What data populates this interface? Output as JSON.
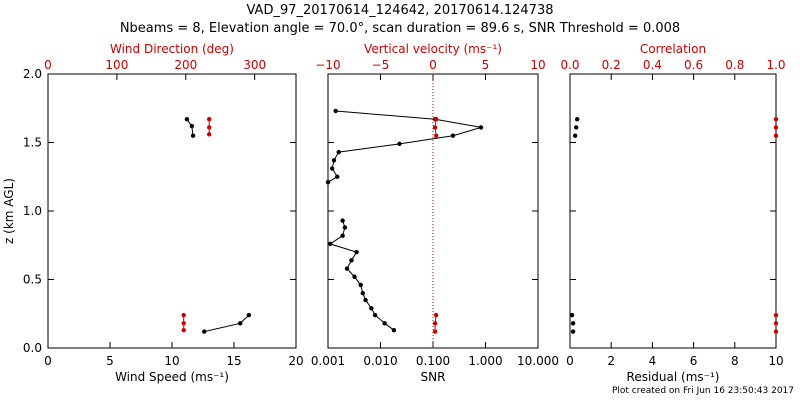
{
  "title_line1": "VAD_97_20170614_124642, 20170614.124738",
  "title_line2": "Nbeams = 8, Elevation angle = 70.0°, scan duration = 89.6 s, SNR Threshold = 0.008",
  "footnote": "Plot created on Fri Jun 16 23:50:43 2017",
  "colors": {
    "black": "#000000",
    "red": "#cc0000",
    "dotted": "#cc0000"
  },
  "chart_data": [
    {
      "type": "line",
      "name": "wind",
      "ylabel": "z (km AGL)",
      "ylim": [
        0.0,
        2.0
      ],
      "yticks": [
        "0.0",
        "0.5",
        "1.0",
        "1.5",
        "2.0"
      ],
      "bottom_axis": {
        "label": "Wind Speed (ms⁻¹)",
        "range": [
          0,
          20
        ],
        "ticks": [
          "0",
          "5",
          "10",
          "15",
          "20"
        ]
      },
      "top_axis": {
        "label": "Wind Direction (deg)",
        "range": [
          0,
          360
        ],
        "ticks": [
          "0",
          "100",
          "200",
          "300"
        ]
      },
      "series": [
        {
          "name": "Wind Speed",
          "axis": "bottom",
          "color": "#000000",
          "segments": [
            [
              {
                "x": 11.2,
                "z": 1.67
              },
              {
                "x": 11.6,
                "z": 1.62
              },
              {
                "x": 11.7,
                "z": 1.55
              }
            ],
            [
              {
                "x": 16.2,
                "z": 0.24
              },
              {
                "x": 15.5,
                "z": 0.18
              },
              {
                "x": 12.6,
                "z": 0.12
              }
            ]
          ]
        },
        {
          "name": "Wind Direction",
          "axis": "top",
          "color": "#cc0000",
          "segments": [
            [
              {
                "x": 234,
                "z": 1.67
              },
              {
                "x": 234,
                "z": 1.61
              },
              {
                "x": 234,
                "z": 1.56
              }
            ],
            [
              {
                "x": 197,
                "z": 0.24
              },
              {
                "x": 197,
                "z": 0.18
              },
              {
                "x": 197,
                "z": 0.13
              }
            ]
          ]
        }
      ]
    },
    {
      "type": "line",
      "name": "vertical-velocity",
      "ylim": [
        0.0,
        2.0
      ],
      "bottom_axis": {
        "label": "SNR",
        "scale": "log",
        "range": [
          0.001,
          10.0
        ],
        "ticks": [
          "0.001",
          "0.010",
          "0.100",
          "1.000",
          "10.000"
        ]
      },
      "top_axis": {
        "label": "Vertical velocity (ms⁻¹)",
        "range": [
          -10,
          10
        ],
        "ticks": [
          "−10",
          "−5",
          "0",
          "5",
          "10"
        ]
      },
      "reference_line": {
        "axis": "bottom",
        "value": 0.1,
        "style": "dotted"
      },
      "series": [
        {
          "name": "SNR",
          "axis": "bottom",
          "color": "#000000",
          "segments": [
            [
              {
                "x": 0.0014,
                "z": 1.73
              },
              {
                "x": 0.11,
                "z": 1.67
              },
              {
                "x": 0.82,
                "z": 1.61
              },
              {
                "x": 0.24,
                "z": 1.55
              },
              {
                "x": 0.023,
                "z": 1.49
              },
              {
                "x": 0.0016,
                "z": 1.43
              },
              {
                "x": 0.0013,
                "z": 1.37
              },
              {
                "x": 0.0012,
                "z": 1.31
              },
              {
                "x": 0.0015,
                "z": 1.25
              },
              {
                "x": 0.001,
                "z": 1.21
              }
            ],
            [
              {
                "x": 0.0019,
                "z": 0.93
              },
              {
                "x": 0.0021,
                "z": 0.88
              },
              {
                "x": 0.0019,
                "z": 0.82
              },
              {
                "x": 0.0011,
                "z": 0.76
              },
              {
                "x": 0.0035,
                "z": 0.7
              },
              {
                "x": 0.0028,
                "z": 0.64
              },
              {
                "x": 0.0023,
                "z": 0.58
              },
              {
                "x": 0.0032,
                "z": 0.52
              },
              {
                "x": 0.0042,
                "z": 0.46
              },
              {
                "x": 0.0046,
                "z": 0.4
              },
              {
                "x": 0.0052,
                "z": 0.35
              },
              {
                "x": 0.0067,
                "z": 0.29
              },
              {
                "x": 0.0079,
                "z": 0.24
              },
              {
                "x": 0.012,
                "z": 0.18
              },
              {
                "x": 0.018,
                "z": 0.13
              }
            ]
          ]
        },
        {
          "name": "Vertical velocity",
          "axis": "top",
          "color": "#cc0000",
          "segments": [
            [
              {
                "x": 0.3,
                "z": 1.67
              },
              {
                "x": 0.2,
                "z": 1.61
              },
              {
                "x": 0.3,
                "z": 1.55
              }
            ],
            [
              {
                "x": 0.3,
                "z": 0.24
              },
              {
                "x": 0.2,
                "z": 0.18
              },
              {
                "x": 0.2,
                "z": 0.12
              }
            ]
          ]
        }
      ]
    },
    {
      "type": "scatter",
      "name": "correlation",
      "ylim": [
        0.0,
        2.0
      ],
      "bottom_axis": {
        "label": "Residual (ms⁻¹)",
        "range": [
          0,
          10
        ],
        "ticks": [
          "0",
          "2",
          "4",
          "6",
          "8",
          "10"
        ]
      },
      "top_axis": {
        "label": "Correlation",
        "range": [
          0.0,
          1.0
        ],
        "ticks": [
          "0.0",
          "0.2",
          "0.4",
          "0.6",
          "0.8",
          "1.0"
        ]
      },
      "series": [
        {
          "name": "Residual",
          "axis": "bottom",
          "color": "#000000",
          "segments": [
            [
              {
                "x": 0.35,
                "z": 1.67
              },
              {
                "x": 0.3,
                "z": 1.61
              },
              {
                "x": 0.25,
                "z": 1.55
              }
            ],
            [
              {
                "x": 0.1,
                "z": 0.24
              },
              {
                "x": 0.15,
                "z": 0.18
              },
              {
                "x": 0.15,
                "z": 0.12
              }
            ]
          ]
        },
        {
          "name": "Correlation",
          "axis": "top",
          "color": "#cc0000",
          "segments": [
            [
              {
                "x": 1.0,
                "z": 1.67
              },
              {
                "x": 1.0,
                "z": 1.61
              },
              {
                "x": 1.0,
                "z": 1.55
              }
            ],
            [
              {
                "x": 1.0,
                "z": 0.24
              },
              {
                "x": 1.0,
                "z": 0.18
              },
              {
                "x": 1.0,
                "z": 0.12
              }
            ]
          ]
        }
      ]
    }
  ]
}
